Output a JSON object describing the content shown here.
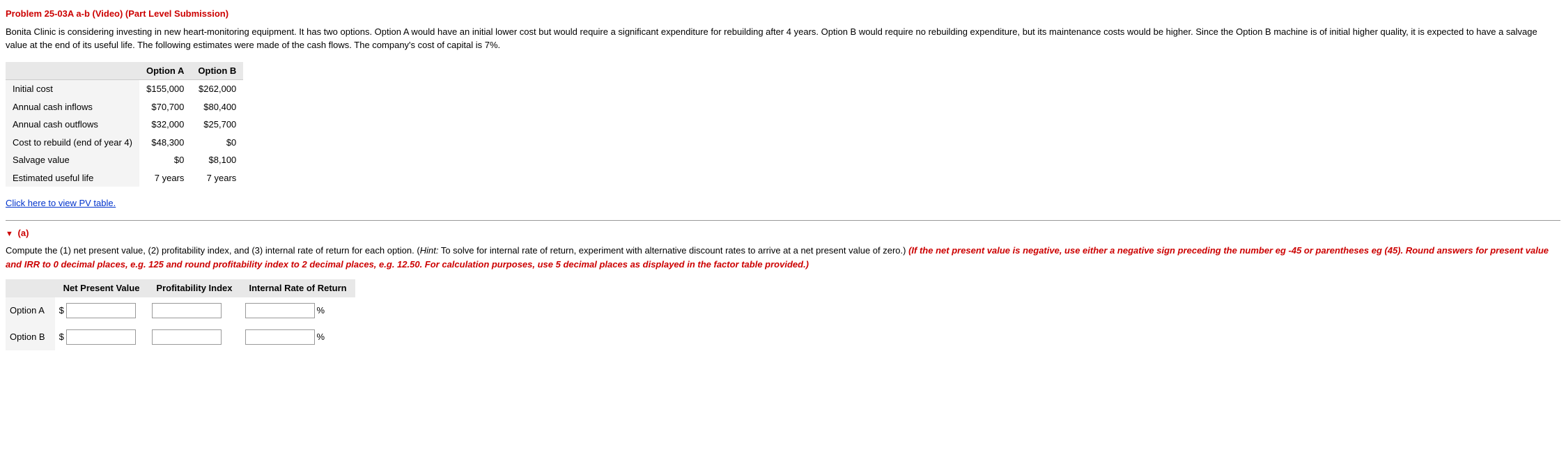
{
  "problem_title": "Problem 25-03A a-b (Video) (Part Level Submission)",
  "intro": "Bonita Clinic is considering investing in new heart-monitoring equipment. It has two options. Option A would have an initial lower cost but would require a significant expenditure for rebuilding after 4 years. Option B would require no rebuilding expenditure, but its maintenance costs would be higher. Since the Option B machine is of initial higher quality, it is expected to have a salvage value at the end of its useful life. The following estimates were made of the cash flows. The company's cost of capital is 7%.",
  "data_table": {
    "col_headers": [
      "",
      "Option A",
      "Option B"
    ],
    "rows": [
      {
        "label": "Initial cost",
        "a": "$155,000",
        "b": "$262,000"
      },
      {
        "label": "Annual cash inflows",
        "a": "$70,700",
        "b": "$80,400"
      },
      {
        "label": "Annual cash outflows",
        "a": "$32,000",
        "b": "$25,700"
      },
      {
        "label": "Cost to rebuild (end of year 4)",
        "a": "$48,300",
        "b": "$0"
      },
      {
        "label": "Salvage value",
        "a": "$0",
        "b": "$8,100"
      },
      {
        "label": "Estimated useful life",
        "a": "7 years",
        "b": "7 years"
      }
    ]
  },
  "pv_link_text": "Click here to view PV table.",
  "part_a": {
    "header": "(a)",
    "question_pre": "Compute the (1) net present value, (2) profitability index, and (3) internal rate of return for each option. (",
    "hint_label": "Hint:",
    "hint_text": " To solve for internal rate of return, experiment with alternative discount rates to arrive at a net present value of zero.) ",
    "red_text": "(If the net present value is negative, use either a negative sign preceding the number eg -45 or parentheses eg (45). Round answers for present value and IRR to 0 decimal places, e.g. 125 and round profitability index to 2 decimal places, e.g. 12.50. For calculation purposes, use 5 decimal places as displayed in the factor table provided.)"
  },
  "answer_table": {
    "headers": [
      "",
      "Net Present Value",
      "Profitability Index",
      "Internal Rate of Return"
    ],
    "rows": [
      {
        "label": "Option A"
      },
      {
        "label": "Option B"
      }
    ],
    "dollar": "$",
    "pct": "%"
  }
}
